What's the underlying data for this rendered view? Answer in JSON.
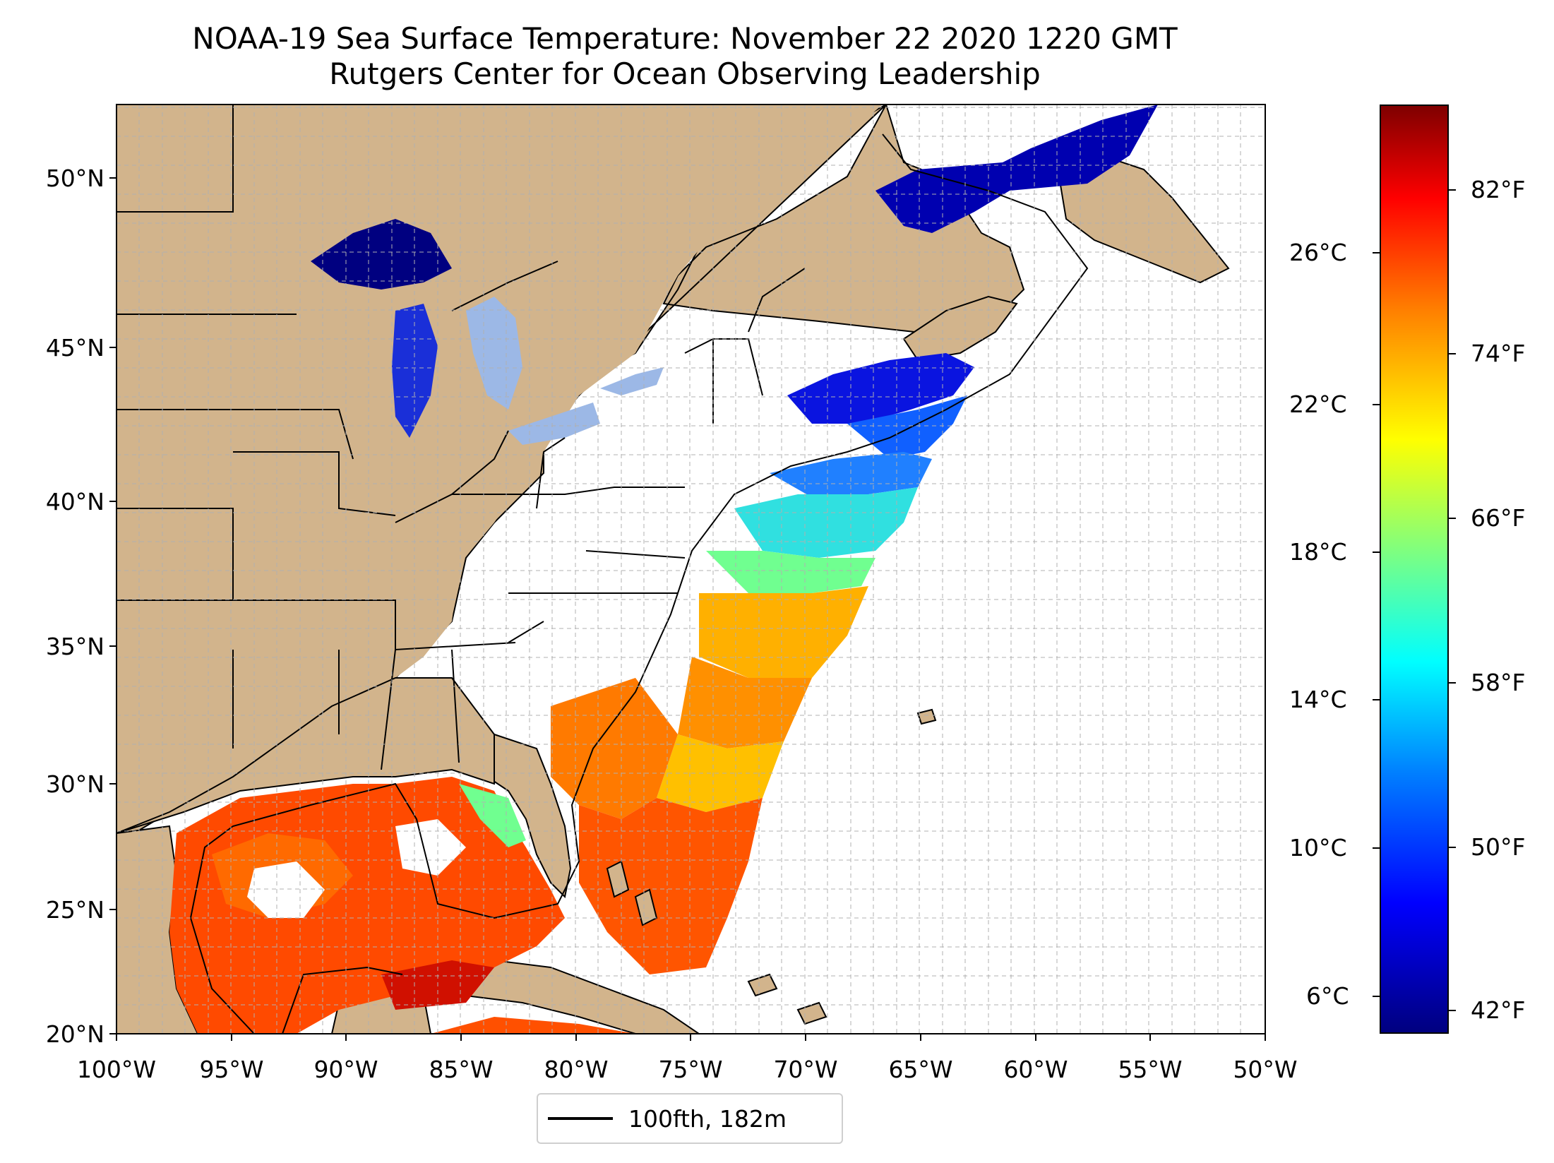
{
  "title": {
    "line1": "NOAA-19 Sea Surface Temperature: November 22 2020 1220 GMT",
    "line2": "Rutgers Center for Ocean Observing Leadership"
  },
  "map": {
    "lon_range": [
      -100,
      -50
    ],
    "lat_range": [
      20,
      52.2
    ],
    "lon_ticks": [
      "100°W",
      "95°W",
      "90°W",
      "85°W",
      "80°W",
      "75°W",
      "70°W",
      "65°W",
      "60°W",
      "55°W",
      "50°W"
    ],
    "lat_ticks": [
      "20°N",
      "25°N",
      "30°N",
      "35°N",
      "40°N",
      "45°N",
      "50°N"
    ],
    "land_color": "#d2b48c",
    "lake_color": "#9cb8e6",
    "grid": "dashed"
  },
  "legend": {
    "label": "100fth, 182m"
  },
  "colorbar": {
    "celsius_labels": [
      "26°C",
      "22°C",
      "18°C",
      "14°C",
      "10°C",
      "6°C"
    ],
    "fahrenheit_labels": [
      "82°F",
      "74°F",
      "66°F",
      "58°F",
      "50°F",
      "42°F"
    ],
    "colormap": "jet"
  },
  "chart_data": {
    "type": "heatmap",
    "title": "NOAA-19 Sea Surface Temperature: November 22 2020 1220 GMT",
    "subtitle": "Rutgers Center for Ocean Observing Leadership",
    "variable": "Sea Surface Temperature",
    "x_range": [
      -100,
      -50
    ],
    "y_range": [
      20,
      52.2
    ],
    "colorbar_range_c": [
      5,
      30
    ],
    "colorbar_range_f": [
      41,
      86
    ],
    "celsius_ticks": [
      26,
      22,
      18,
      14,
      10,
      6
    ],
    "fahrenheit_ticks": [
      82,
      74,
      66,
      58,
      50,
      42
    ],
    "contour": "100fth, 182m"
  }
}
